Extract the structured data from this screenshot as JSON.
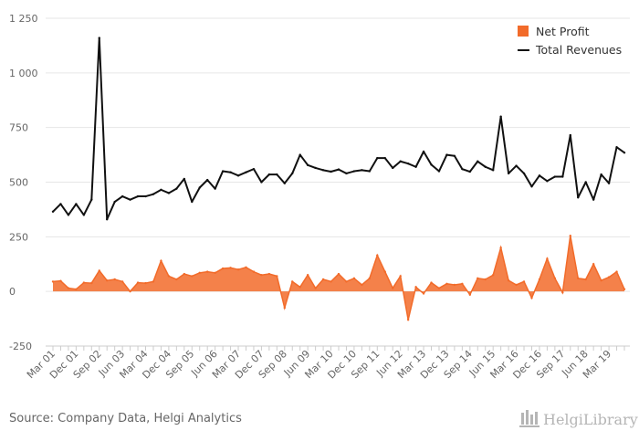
{
  "chart_data": {
    "type": "line",
    "x": [
      "Mar 01",
      "Jun 01",
      "Sep 01",
      "Dec 01",
      "Mar 02",
      "Jun 02",
      "Sep 02",
      "Dec 02",
      "Mar 03",
      "Jun 03",
      "Sep 03",
      "Dec 03",
      "Mar 04",
      "Jun 04",
      "Sep 04",
      "Dec 04",
      "Mar 05",
      "Jun 05",
      "Sep 05",
      "Dec 05",
      "Mar 06",
      "Jun 06",
      "Sep 06",
      "Dec 06",
      "Mar 07",
      "Jun 07",
      "Sep 07",
      "Dec 07",
      "Mar 08",
      "Jun 08",
      "Sep 08",
      "Dec 08",
      "Mar 09",
      "Jun 09",
      "Sep 09",
      "Dec 09",
      "Mar 10",
      "Jun 10",
      "Sep 10",
      "Dec 10",
      "Mar 11",
      "Jun 11",
      "Sep 11",
      "Dec 11",
      "Mar 12",
      "Jun 12",
      "Sep 12",
      "Dec 12",
      "Mar 13",
      "Jun 13",
      "Sep 13",
      "Dec 13",
      "Mar 14",
      "Jun 14",
      "Sep 14",
      "Dec 14",
      "Mar 15",
      "Jun 15",
      "Sep 15",
      "Dec 15",
      "Mar 16",
      "Jun 16",
      "Sep 16",
      "Dec 16",
      "Mar 17",
      "Jun 17",
      "Sep 17",
      "Dec 17",
      "Mar 18",
      "Jun 18",
      "Sep 18",
      "Dec 18",
      "Mar 19",
      "Jun 19",
      "Sep 19"
    ],
    "x_tick_labels": [
      "Mar 01",
      "Dec 01",
      "Sep 02",
      "Jun 03",
      "Mar 04",
      "Dec 04",
      "Sep 05",
      "Jun 06",
      "Mar 07",
      "Dec 07",
      "Sep 08",
      "Jun 09",
      "Mar 10",
      "Dec 10",
      "Sep 11",
      "Jun 12",
      "Mar 13",
      "Dec 13",
      "Sep 14",
      "Jun 15",
      "Mar 16",
      "Dec 16",
      "Sep 17",
      "Jun 18",
      "Mar 19"
    ],
    "y_ticks": [
      -250,
      0,
      250,
      500,
      750,
      1000,
      1250
    ],
    "y_tick_labels": [
      "-250",
      "0",
      "250",
      "500",
      "750",
      "1 000",
      "1 250"
    ],
    "ylim": [
      -250,
      1250
    ],
    "grid": "horizontal",
    "legend_position": "top-right",
    "series": [
      {
        "name": "Net Profit",
        "kind": "area",
        "color": "#f26b2a",
        "values": [
          45,
          48,
          15,
          10,
          40,
          38,
          95,
          50,
          55,
          45,
          0,
          40,
          38,
          45,
          140,
          70,
          55,
          80,
          70,
          85,
          90,
          85,
          105,
          108,
          100,
          110,
          90,
          75,
          80,
          70,
          -75,
          45,
          20,
          75,
          15,
          55,
          45,
          80,
          45,
          60,
          30,
          60,
          165,
          90,
          15,
          70,
          -130,
          20,
          -10,
          40,
          15,
          35,
          30,
          35,
          -15,
          60,
          55,
          75,
          200,
          50,
          30,
          45,
          -30,
          55,
          150,
          60,
          -5,
          255,
          60,
          55,
          125,
          50,
          65,
          90,
          10
        ]
      },
      {
        "name": "Total Revenues",
        "kind": "line",
        "color": "#111111",
        "values": [
          365,
          400,
          350,
          400,
          350,
          420,
          1160,
          330,
          410,
          435,
          420,
          435,
          435,
          445,
          465,
          450,
          470,
          515,
          410,
          475,
          510,
          470,
          550,
          545,
          530,
          545,
          560,
          500,
          535,
          535,
          495,
          540,
          625,
          578,
          565,
          555,
          548,
          558,
          540,
          550,
          555,
          550,
          610,
          610,
          565,
          595,
          585,
          570,
          640,
          580,
          550,
          625,
          620,
          560,
          548,
          595,
          570,
          555,
          800,
          540,
          575,
          540,
          480,
          530,
          505,
          525,
          525,
          715,
          430,
          500,
          420,
          535,
          495,
          660,
          635
        ]
      }
    ]
  },
  "footer": {
    "source": "Source: Company Data, Helgi Analytics",
    "logo": "HelgiLibrary"
  }
}
